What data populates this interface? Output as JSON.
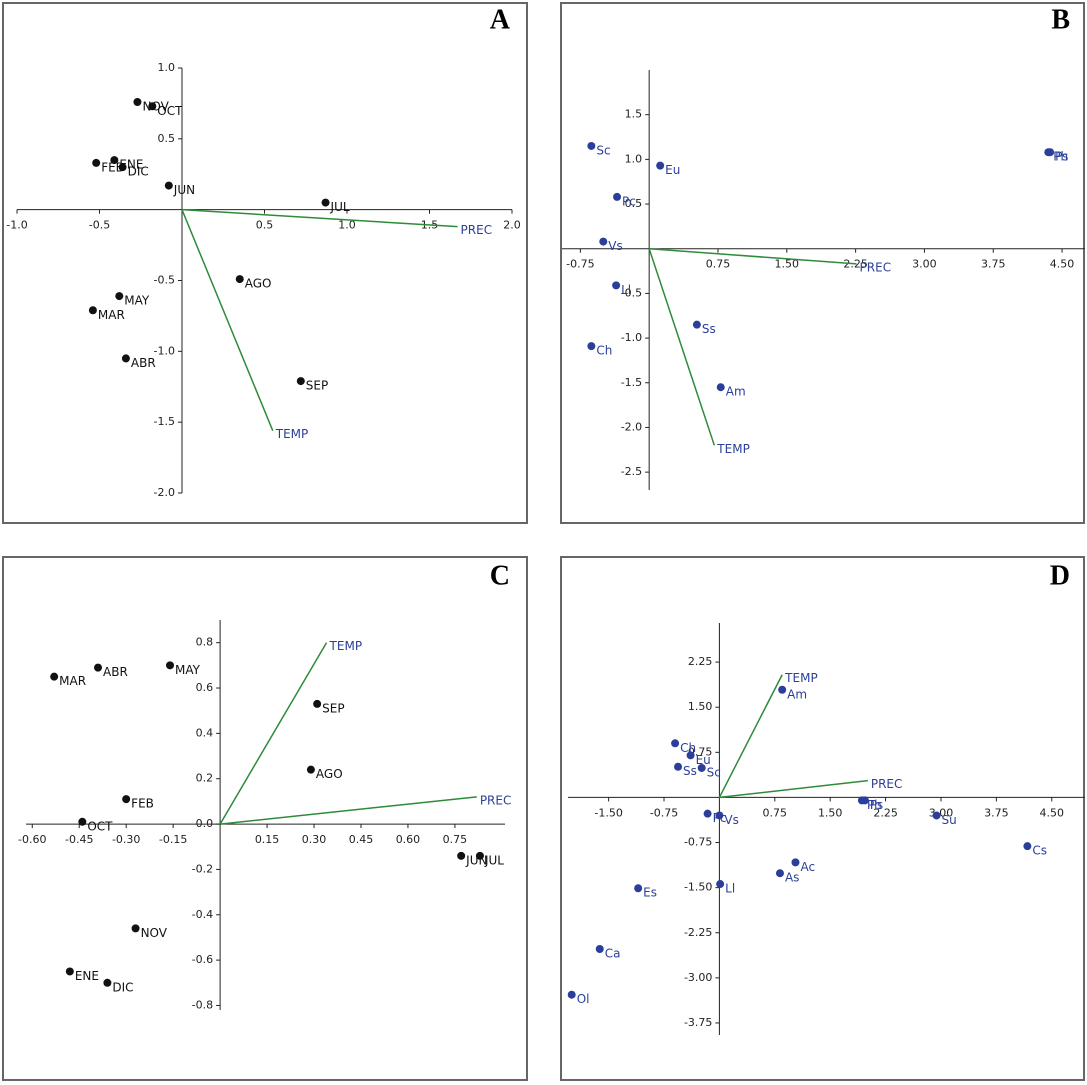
{
  "chart_data": [
    {
      "type": "scatter",
      "panel_label": "A",
      "xlim": [
        -1.0,
        2.0
      ],
      "ylim": [
        -2.0,
        1.0
      ],
      "xticks": [
        {
          "value": -1,
          "label": "-1.0"
        },
        -0.5,
        0.5,
        {
          "value": 1,
          "label": "1.0"
        },
        1.5,
        {
          "value": 2,
          "label": "2.0"
        }
      ],
      "yticks": [
        {
          "value": 1,
          "label": "1.0"
        },
        0.5,
        -0.5,
        {
          "value": -1,
          "label": "-1.0"
        },
        -1.5,
        {
          "value": -2,
          "label": "-2.0"
        }
      ],
      "labels": [
        "NOV",
        "OCT",
        "ENE",
        "FEB",
        "DIC",
        "JUN",
        "JUL",
        "AGO",
        "MAY",
        "MAR",
        "ABR",
        "SEP"
      ],
      "x": [
        -0.27,
        -0.18,
        -0.41,
        -0.52,
        -0.36,
        -0.08,
        0.87,
        0.35,
        -0.38,
        -0.54,
        -0.34,
        0.72
      ],
      "y": [
        0.76,
        0.73,
        0.35,
        0.33,
        0.3,
        0.17,
        0.05,
        -0.49,
        -0.61,
        -0.71,
        -1.05,
        -1.21
      ],
      "color": "#111111",
      "vectors": [
        {
          "name": "PREC",
          "x": 1.67,
          "y": -0.12
        },
        {
          "name": "TEMP",
          "x": 0.55,
          "y": -1.56
        }
      ],
      "vector_color": "#2e8b3a",
      "vector_label_color": "#2b3f9a"
    },
    {
      "type": "scatter",
      "panel_label": "B",
      "xlim": [
        -0.95,
        4.75
      ],
      "ylim": [
        -2.7,
        2.0
      ],
      "xticks": [
        -0.75,
        0.75,
        {
          "value": 1.5,
          "label": "1.50"
        },
        2.25,
        {
          "value": 3,
          "label": "3.00"
        },
        3.75,
        {
          "value": 4.5,
          "label": "4.50"
        }
      ],
      "yticks": [
        1.5,
        {
          "value": 1,
          "label": "1.0"
        },
        0.5,
        -0.5,
        {
          "value": -1,
          "label": "-1.0"
        },
        -1.5,
        {
          "value": -2,
          "label": "-2.0"
        },
        -2.5
      ],
      "labels": [
        "Sc",
        "Eu",
        "Pc",
        "Vs",
        "Ll",
        "Ss",
        "Ch",
        "Am",
        "Ph",
        "Ps"
      ],
      "x": [
        -0.63,
        0.12,
        -0.35,
        -0.5,
        -0.36,
        0.52,
        -0.63,
        0.78,
        4.35,
        4.37
      ],
      "y": [
        1.15,
        0.93,
        0.58,
        0.08,
        -0.41,
        -0.85,
        -1.09,
        -1.55,
        1.08,
        1.08
      ],
      "color": "#2b3f9a",
      "vectors": [
        {
          "name": "PREC",
          "x": 2.26,
          "y": -0.17
        },
        {
          "name": "TEMP",
          "x": 0.71,
          "y": -2.2
        }
      ],
      "vector_color": "#2e8b3a",
      "vector_label_color": "#2b3f9a"
    },
    {
      "type": "scatter",
      "panel_label": "C",
      "xlim": [
        -0.62,
        0.91
      ],
      "ylim": [
        -0.82,
        0.9
      ],
      "xticks": [
        {
          "value": -0.6,
          "label": "-0.60"
        },
        -0.45,
        {
          "value": -0.3,
          "label": "-0.30"
        },
        -0.15,
        0.15,
        {
          "value": 0.3,
          "label": "0.30"
        },
        0.45,
        {
          "value": 0.6,
          "label": "0.60"
        },
        0.75
      ],
      "yticks": [
        0.8,
        0.6,
        0.4,
        0.2,
        {
          "value": 0,
          "label": "0.0"
        },
        -0.2,
        -0.4,
        -0.6,
        -0.8
      ],
      "labels": [
        "MAR",
        "ABR",
        "MAY",
        "SEP",
        "AGO",
        "FEB",
        "OCT",
        "JUN",
        "JUL",
        "NOV",
        "ENE",
        "DIC"
      ],
      "x": [
        -0.53,
        -0.39,
        -0.16,
        0.31,
        0.29,
        -0.3,
        -0.44,
        0.77,
        0.83,
        -0.27,
        -0.48,
        -0.36
      ],
      "y": [
        0.65,
        0.69,
        0.7,
        0.53,
        0.24,
        0.11,
        0.01,
        -0.14,
        -0.14,
        -0.46,
        -0.65,
        -0.7
      ],
      "color": "#111111",
      "vectors": [
        {
          "name": "TEMP",
          "x": 0.34,
          "y": 0.8
        },
        {
          "name": "PREC",
          "x": 0.82,
          "y": 0.12
        }
      ],
      "vector_color": "#2e8b3a",
      "vector_label_color": "#2b3f9a"
    },
    {
      "type": "scatter",
      "panel_label": "D",
      "xlim": [
        -2.05,
        4.95
      ],
      "ylim": [
        -3.95,
        2.9
      ],
      "xticks": [
        {
          "value": -1.5,
          "label": "-1.50"
        },
        -0.75,
        0.75,
        {
          "value": 1.5,
          "label": "1.50"
        },
        2.25,
        {
          "value": 3,
          "label": "3.00"
        },
        3.75,
        {
          "value": 4.5,
          "label": "4.50"
        }
      ],
      "yticks": [
        2.25,
        {
          "value": 1.5,
          "label": "1.50"
        },
        0.75,
        -0.75,
        {
          "value": -1.5,
          "label": "-1.50"
        },
        -2.25,
        {
          "value": -3,
          "label": "-3.00"
        },
        -3.75
      ],
      "labels": [
        "Am",
        "Ch",
        "Eu",
        "Ss",
        "Sc",
        "Pc",
        "Vs",
        "Ph",
        "Ps",
        "Su",
        "Cs",
        "Ac",
        "As",
        "Ll",
        "Es",
        "Ca",
        "Ol"
      ],
      "x": [
        0.85,
        -0.6,
        -0.39,
        -0.56,
        -0.24,
        -0.16,
        0.0,
        1.93,
        1.97,
        2.94,
        4.17,
        1.03,
        0.82,
        0.01,
        -1.1,
        -1.62,
        -2.0
      ],
      "y": [
        1.79,
        0.9,
        0.7,
        0.51,
        0.49,
        -0.27,
        -0.3,
        -0.05,
        -0.05,
        -0.3,
        -0.81,
        -1.08,
        -1.26,
        -1.44,
        -1.51,
        -2.52,
        -3.28
      ],
      "color": "#2b3f9a",
      "vectors": [
        {
          "name": "TEMP",
          "x": 0.85,
          "y": 2.04
        },
        {
          "name": "PREC",
          "x": 2.01,
          "y": 0.28
        }
      ],
      "vector_color": "#2e8b3a",
      "vector_label_color": "#2b3f9a"
    }
  ]
}
